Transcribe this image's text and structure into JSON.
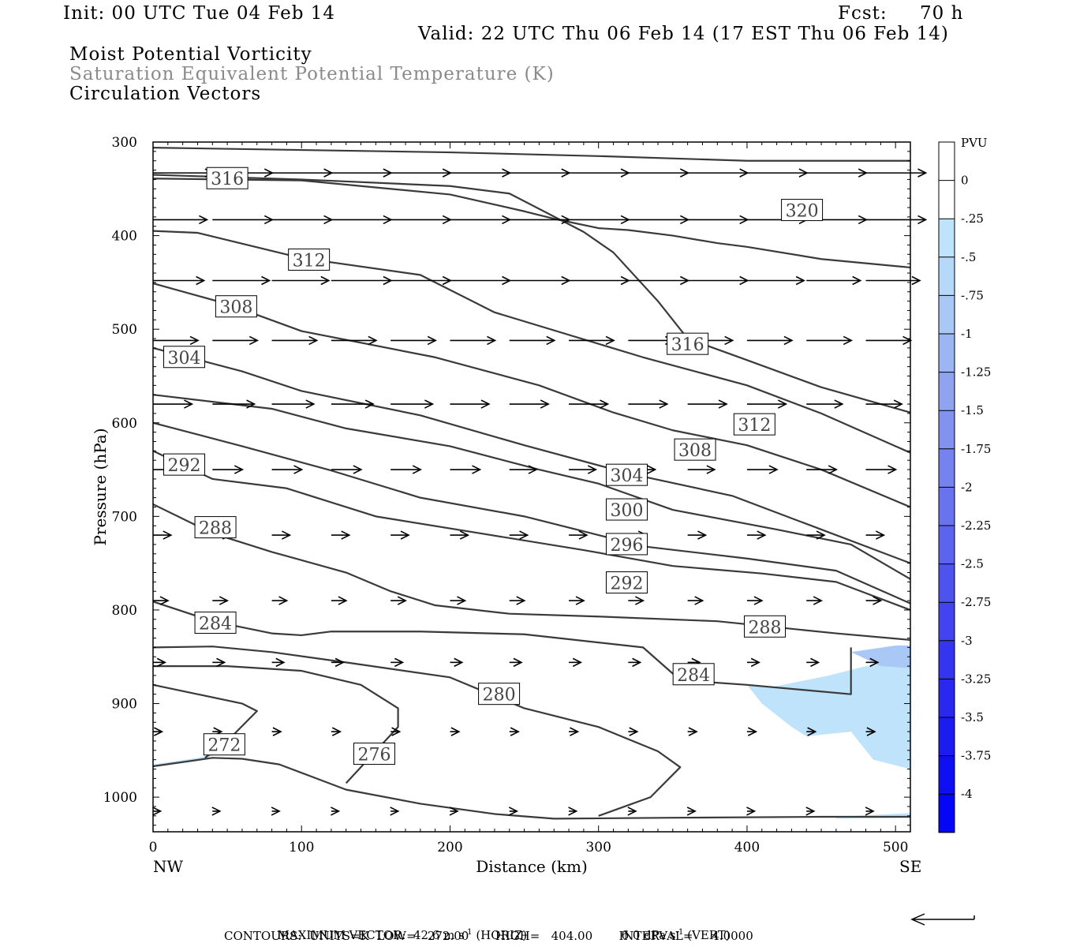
{
  "header": {
    "init": "Init: 00 UTC Tue 04 Feb 14",
    "fcst_label": "Fcst:",
    "fcst_value": "70 h",
    "valid": "Valid: 22 UTC Thu 06 Feb 14 (17 EST Thu 06 Feb 14)",
    "fields": [
      "Moist Potential Vorticity",
      "Saturation Equivalent Potential Temperature (K)",
      "Circulation Vectors"
    ]
  },
  "footer": {
    "max_vector_label": "MAXIMUM VECTOR:",
    "max_vector_horiz": "42.6 m s",
    "max_vector_horiz_sup": "-1",
    "max_vector_horiz_unit": "(HORIZ)",
    "max_vector_vert": "6.0 dPa s",
    "max_vector_vert_sup": "-1",
    "max_vector_vert_unit": "(VERT)",
    "contours": "CONTOURS:  UNITS=K  LOW=   272.00       HIGH=   404.00       INTERVAL=     4.0000"
  },
  "colors": {
    "contour": "#3a3a3a",
    "vector": "#000000",
    "pv_light": "#bfe3fb",
    "pv_mid": "#a9c8f5"
  },
  "chart_data": {
    "type": "cross-section",
    "xlabel": "Distance (km)",
    "ylabel": "Pressure (hPa)",
    "x_range": [
      0,
      510
    ],
    "y_range": [
      300,
      1037
    ],
    "x_ticks": [
      0,
      100,
      200,
      300,
      400,
      500
    ],
    "y_ticks": [
      300,
      400,
      500,
      600,
      700,
      800,
      900,
      1000
    ],
    "x_end_labels": {
      "left": "NW",
      "right": "SE"
    },
    "colorbar": {
      "unit": "PVU",
      "levels": [
        0.25,
        0,
        -0.25,
        -0.5,
        -0.75,
        -1,
        -1.25,
        -1.5,
        -1.75,
        -2,
        -2.25,
        -2.5,
        -2.75,
        -3,
        -3.25,
        -3.5,
        -3.75,
        -4,
        -4.25
      ],
      "labels": [
        "0",
        "-.25",
        "-.5",
        "-.75",
        "-1",
        "-1.25",
        "-1.5",
        "-1.75",
        "-2",
        "-2.25",
        "-2.5",
        "-2.75",
        "-3",
        "-3.25",
        "-3.5",
        "-3.75",
        "-4"
      ],
      "colors": [
        "#ffffff",
        "#ffffff",
        "#bfe3fb",
        "#b6d8fa",
        "#a9c8f5",
        "#9cb6f3",
        "#8fa3f0",
        "#8293ef",
        "#7583ee",
        "#6a73ee",
        "#5c63ee",
        "#4f53ee",
        "#4343ef",
        "#3535ef",
        "#2828f0",
        "#1b1bf2",
        "#0f0ff4",
        "#0505f8"
      ]
    },
    "contours": [
      {
        "value": 320,
        "points": [
          [
            0,
            306
          ],
          [
            200,
            311
          ],
          [
            300,
            315
          ],
          [
            400,
            320
          ],
          [
            510,
            320
          ]
        ]
      },
      {
        "value": 320,
        "label": "320",
        "label_at": [
          437,
          373
        ],
        "points": [
          [
            0,
            335
          ],
          [
            100,
            340
          ],
          [
            200,
            347
          ],
          [
            240,
            355
          ],
          [
            290,
            396
          ],
          [
            310,
            418
          ],
          [
            340,
            470
          ],
          [
            360,
            510
          ],
          [
            400,
            533
          ],
          [
            450,
            562
          ],
          [
            510,
            589
          ]
        ]
      },
      {
        "value": 316,
        "label": "316",
        "label_at": [
          50,
          339
        ],
        "points": [
          [
            0,
            339
          ],
          [
            100,
            341
          ],
          [
            200,
            356
          ],
          [
            250,
            374
          ],
          [
            270,
            382
          ],
          [
            300,
            392
          ],
          [
            320,
            394
          ],
          [
            350,
            400
          ],
          [
            380,
            408
          ],
          [
            400,
            412
          ],
          [
            450,
            425
          ],
          [
            510,
            434
          ]
        ]
      },
      {
        "value": 316,
        "label": "316",
        "label_at": [
          360,
          516
        ],
        "points": []
      },
      {
        "value": 312,
        "label": "312",
        "label_at": [
          105,
          426
        ],
        "points": [
          [
            0,
            395
          ],
          [
            30,
            397
          ],
          [
            100,
            424
          ],
          [
            180,
            442
          ],
          [
            230,
            482
          ],
          [
            330,
            530
          ],
          [
            400,
            560
          ],
          [
            450,
            590
          ],
          [
            510,
            632
          ]
        ]
      },
      {
        "value": 312,
        "label": "312",
        "label_at": [
          405,
          602
        ],
        "points": []
      },
      {
        "value": 308,
        "label": "308",
        "label_at": [
          56,
          476
        ],
        "points": [
          [
            0,
            451
          ],
          [
            50,
            473
          ],
          [
            100,
            502
          ],
          [
            190,
            530
          ],
          [
            260,
            560
          ],
          [
            310,
            589
          ],
          [
            350,
            608
          ],
          [
            400,
            624
          ],
          [
            450,
            650
          ],
          [
            510,
            690
          ]
        ]
      },
      {
        "value": 308,
        "label": "308",
        "label_at": [
          365,
          629
        ],
        "points": []
      },
      {
        "value": 304,
        "label": "304",
        "label_at": [
          21,
          530
        ],
        "points": [
          [
            0,
            520
          ],
          [
            60,
            545
          ],
          [
            100,
            566
          ],
          [
            180,
            592
          ],
          [
            250,
            624
          ],
          [
            320,
            654
          ],
          [
            390,
            678
          ],
          [
            450,
            714
          ],
          [
            510,
            750
          ]
        ]
      },
      {
        "value": 300,
        "points": [
          [
            0,
            570
          ],
          [
            80,
            585
          ],
          [
            130,
            606
          ],
          [
            200,
            625
          ],
          [
            260,
            650
          ],
          [
            300,
            665
          ],
          [
            350,
            693
          ],
          [
            420,
            714
          ],
          [
            470,
            730
          ],
          [
            510,
            767
          ]
        ]
      },
      {
        "value": 300,
        "label": "300",
        "label_at": [
          319,
          693
        ],
        "points": []
      },
      {
        "value": 304,
        "label": "304",
        "label_at": [
          319,
          656
        ],
        "points": []
      },
      {
        "value": 296,
        "label": "296",
        "label_at": [
          319,
          730
        ],
        "points": [
          [
            0,
            600
          ],
          [
            60,
            625
          ],
          [
            120,
            651
          ],
          [
            180,
            680
          ],
          [
            250,
            700
          ],
          [
            330,
            732
          ],
          [
            400,
            745
          ],
          [
            460,
            758
          ],
          [
            510,
            793
          ]
        ]
      },
      {
        "value": 292,
        "label": "292",
        "label_at": [
          21,
          645
        ],
        "points": [
          [
            0,
            630
          ],
          [
            40,
            660
          ],
          [
            90,
            670
          ],
          [
            150,
            700
          ],
          [
            220,
            718
          ],
          [
            290,
            736
          ],
          [
            350,
            753
          ],
          [
            410,
            761
          ],
          [
            460,
            770
          ],
          [
            510,
            800
          ]
        ]
      },
      {
        "value": 292,
        "label": "292",
        "label_at": [
          319,
          771
        ],
        "points": []
      },
      {
        "value": 288,
        "label": "288",
        "label_at": [
          42,
          712
        ],
        "points": [
          [
            0,
            687
          ],
          [
            40,
            718
          ],
          [
            80,
            738
          ],
          [
            130,
            760
          ],
          [
            160,
            780
          ],
          [
            190,
            795
          ],
          [
            240,
            804
          ],
          [
            300,
            807
          ],
          [
            380,
            812
          ],
          [
            460,
            825
          ],
          [
            510,
            832
          ]
        ]
      },
      {
        "value": 288,
        "label": "288",
        "label_at": [
          412,
          818
        ],
        "points": []
      },
      {
        "value": 284,
        "label": "284",
        "label_at": [
          42,
          814
        ],
        "points": [
          [
            0,
            791
          ],
          [
            40,
            812
          ],
          [
            80,
            825
          ],
          [
            100,
            827
          ],
          [
            120,
            823
          ],
          [
            180,
            823
          ],
          [
            250,
            826
          ],
          [
            330,
            840
          ],
          [
            355,
            875
          ],
          [
            400,
            880
          ],
          [
            470,
            890
          ],
          [
            470,
            880
          ],
          [
            470,
            840
          ]
        ]
      },
      {
        "value": 284,
        "label": "284",
        "label_at": [
          364,
          869
        ],
        "points": []
      },
      {
        "value": 280,
        "label": "280",
        "label_at": [
          233,
          890
        ],
        "points": [
          [
            0,
            840
          ],
          [
            40,
            839
          ],
          [
            80,
            845
          ],
          [
            130,
            856
          ],
          [
            200,
            872
          ],
          [
            250,
            905
          ],
          [
            300,
            925
          ],
          [
            340,
            951
          ],
          [
            355,
            968
          ],
          [
            335,
            1000
          ],
          [
            300,
            1020
          ]
        ]
      },
      {
        "value": 276,
        "label": "276",
        "label_at": [
          149,
          954
        ],
        "points": [
          [
            0,
            860
          ],
          [
            50,
            860
          ],
          [
            100,
            865
          ],
          [
            140,
            880
          ],
          [
            165,
            905
          ],
          [
            165,
            925
          ],
          [
            130,
            985
          ]
        ]
      },
      {
        "value": 272,
        "label": "272",
        "label_at": [
          48,
          944
        ],
        "points": [
          [
            0,
            880
          ],
          [
            30,
            890
          ],
          [
            60,
            900
          ],
          [
            70,
            908
          ],
          [
            50,
            940
          ],
          [
            35,
            958
          ]
        ]
      },
      {
        "value": 284,
        "points": [
          [
            0,
            967
          ],
          [
            40,
            958
          ],
          [
            60,
            959
          ],
          [
            85,
            965
          ],
          [
            110,
            980
          ],
          [
            130,
            992
          ],
          [
            180,
            1007
          ],
          [
            230,
            1018
          ],
          [
            270,
            1023
          ],
          [
            350,
            1022
          ],
          [
            450,
            1021
          ],
          [
            510,
            1021
          ]
        ]
      }
    ],
    "pv_regions": [
      {
        "level": -0.25,
        "points": [
          [
            415,
            883
          ],
          [
            455,
            870
          ],
          [
            480,
            860
          ],
          [
            510,
            853
          ],
          [
            510,
            970
          ],
          [
            485,
            960
          ],
          [
            470,
            930
          ],
          [
            440,
            935
          ],
          [
            430,
            925
          ],
          [
            410,
            900
          ],
          [
            400,
            880
          ]
        ]
      },
      {
        "level": -0.5,
        "points": [
          [
            470,
            845
          ],
          [
            500,
            838
          ],
          [
            510,
            838
          ],
          [
            510,
            862
          ],
          [
            490,
            860
          ]
        ]
      },
      {
        "level": -0.25,
        "points": [
          [
            0,
            965
          ],
          [
            30,
            958
          ],
          [
            45,
            953
          ],
          [
            30,
            961
          ],
          [
            0,
            968
          ]
        ]
      },
      {
        "level": -0.25,
        "points": [
          [
            460,
            1021
          ],
          [
            510,
            1017
          ],
          [
            510,
            1022
          ],
          [
            460,
            1023
          ]
        ]
      }
    ],
    "vectors": [
      {
        "row_p": 333,
        "u": [
          40,
          40,
          40,
          40,
          40,
          40,
          40,
          40,
          40,
          40,
          40,
          40,
          40
        ]
      },
      {
        "row_p": 383,
        "u": [
          36,
          40,
          40,
          40,
          40,
          40,
          40,
          40,
          40,
          40,
          40,
          40,
          40
        ]
      },
      {
        "row_p": 448,
        "u": [
          34,
          38,
          38,
          40,
          40,
          40,
          40,
          40,
          40,
          40,
          38,
          36,
          36
        ]
      },
      {
        "row_p": 512,
        "u": [
          30,
          30,
          30,
          30,
          30,
          30,
          30,
          30,
          30,
          30,
          30,
          30,
          30
        ]
      },
      {
        "row_p": 580,
        "u": [
          26,
          28,
          28,
          28,
          28,
          26,
          26,
          26,
          26,
          26,
          26,
          24,
          24
        ]
      },
      {
        "row_p": 650,
        "u": [
          18,
          20,
          20,
          20,
          20,
          20,
          18,
          18,
          18,
          18,
          20,
          20,
          20
        ]
      },
      {
        "row_p": 720,
        "u": [
          12,
          12,
          12,
          12,
          12,
          12,
          12,
          12,
          12,
          12,
          12,
          12,
          12
        ]
      },
      {
        "row_p": 790,
        "u": [
          10,
          10,
          10,
          10,
          10,
          10,
          10,
          10,
          10,
          10,
          10,
          10,
          10
        ]
      },
      {
        "row_p": 856,
        "u": [
          8,
          8,
          8,
          8,
          8,
          8,
          8,
          8,
          8,
          8,
          8,
          8,
          8
        ]
      },
      {
        "row_p": 930,
        "u": [
          6,
          6,
          6,
          6,
          6,
          6,
          6,
          6,
          6,
          6,
          6,
          6,
          6
        ]
      },
      {
        "row_p": 1015,
        "u": [
          5,
          5,
          5,
          5,
          5,
          5,
          5,
          5,
          5,
          5,
          5,
          5,
          5
        ]
      }
    ]
  }
}
